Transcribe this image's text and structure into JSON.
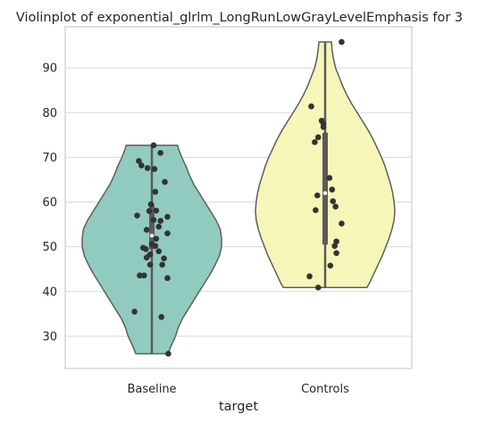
{
  "chart_data": {
    "type": "violin",
    "title": "Violinplot of exponential_glrlm_LongRunLowGrayLevelEmphasis for 3",
    "xlabel": "target",
    "ylabel": "",
    "categories": [
      "Baseline",
      "Controls"
    ],
    "ylim": [
      22.8,
      99.2
    ],
    "yticks": [
      30,
      40,
      50,
      60,
      70,
      80,
      90
    ],
    "grid": true,
    "colors": {
      "Baseline": "#91cbc0",
      "Controls": "#f6f6b9",
      "points": "#333333",
      "outline": "#5e5e5e"
    },
    "series": [
      {
        "category": "Baseline",
        "min": 26.1,
        "max": 72.7,
        "q1": 49.5,
        "q3": 59.5,
        "median": 52.5,
        "profile": [
          [
            26.1,
            0.23
          ],
          [
            28,
            0.28
          ],
          [
            30,
            0.34
          ],
          [
            32,
            0.38
          ],
          [
            34,
            0.44
          ],
          [
            36,
            0.52
          ],
          [
            38,
            0.6
          ],
          [
            40,
            0.68
          ],
          [
            42,
            0.76
          ],
          [
            44,
            0.84
          ],
          [
            46,
            0.91
          ],
          [
            48,
            0.97
          ],
          [
            50,
            1.0
          ],
          [
            52,
            1.0
          ],
          [
            54,
            0.98
          ],
          [
            56,
            0.92
          ],
          [
            58,
            0.84
          ],
          [
            60,
            0.76
          ],
          [
            62,
            0.68
          ],
          [
            64,
            0.6
          ],
          [
            66,
            0.54
          ],
          [
            68,
            0.49
          ],
          [
            70,
            0.43
          ],
          [
            72,
            0.38
          ],
          [
            72.7,
            0.37
          ]
        ],
        "points": [
          [
            0.02,
            72.7
          ],
          [
            0.1,
            71.0
          ],
          [
            -0.15,
            69.2
          ],
          [
            -0.12,
            68.2
          ],
          [
            -0.05,
            67.6
          ],
          [
            0.03,
            67.4
          ],
          [
            0.15,
            64.5
          ],
          [
            0.04,
            62.3
          ],
          [
            -0.01,
            59.5
          ],
          [
            -0.03,
            58.0
          ],
          [
            0.05,
            58.1
          ],
          [
            -0.17,
            57.0
          ],
          [
            0.18,
            56.7
          ],
          [
            0.02,
            56.0
          ],
          [
            0.1,
            55.8
          ],
          [
            0.08,
            54.5
          ],
          [
            -0.06,
            53.8
          ],
          [
            0.18,
            53.0
          ],
          [
            0.05,
            51.8
          ],
          [
            0.0,
            50.6
          ],
          [
            -0.1,
            49.8
          ],
          [
            0.04,
            50.2
          ],
          [
            -0.07,
            49.5
          ],
          [
            0.08,
            49.0
          ],
          [
            -0.02,
            48.3
          ],
          [
            -0.06,
            47.6
          ],
          [
            0.14,
            47.4
          ],
          [
            0.12,
            46.0
          ],
          [
            -0.02,
            46.0
          ],
          [
            -0.14,
            43.6
          ],
          [
            -0.09,
            43.6
          ],
          [
            0.18,
            43.0
          ],
          [
            -0.2,
            35.5
          ],
          [
            0.11,
            34.3
          ],
          [
            0.19,
            26.1
          ]
        ]
      },
      {
        "category": "Controls",
        "min": 40.9,
        "max": 95.8,
        "q1": 50.5,
        "q3": 75.5,
        "median": 62.0,
        "profile": [
          [
            40.9,
            0.6
          ],
          [
            42,
            0.64
          ],
          [
            44,
            0.7
          ],
          [
            46,
            0.76
          ],
          [
            48,
            0.82
          ],
          [
            50,
            0.87
          ],
          [
            52,
            0.92
          ],
          [
            54,
            0.96
          ],
          [
            56,
            0.99
          ],
          [
            58,
            1.0
          ],
          [
            60,
            0.99
          ],
          [
            62,
            0.97
          ],
          [
            64,
            0.94
          ],
          [
            66,
            0.9
          ],
          [
            68,
            0.86
          ],
          [
            70,
            0.81
          ],
          [
            72,
            0.75
          ],
          [
            74,
            0.69
          ],
          [
            76,
            0.62
          ],
          [
            78,
            0.54
          ],
          [
            80,
            0.46
          ],
          [
            82,
            0.38
          ],
          [
            84,
            0.31
          ],
          [
            86,
            0.25
          ],
          [
            88,
            0.2
          ],
          [
            90,
            0.15
          ],
          [
            92,
            0.12
          ],
          [
            94,
            0.1
          ],
          [
            95.8,
            0.09
          ]
        ],
        "points": [
          [
            0.19,
            95.8
          ],
          [
            -0.16,
            81.4
          ],
          [
            -0.04,
            78.2
          ],
          [
            -0.02,
            77.5
          ],
          [
            -0.02,
            76.8
          ],
          [
            -0.08,
            74.5
          ],
          [
            -0.12,
            73.4
          ],
          [
            0.05,
            65.4
          ],
          [
            0.08,
            62.8
          ],
          [
            -0.09,
            61.5
          ],
          [
            0.09,
            60.2
          ],
          [
            0.12,
            59.0
          ],
          [
            -0.11,
            58.2
          ],
          [
            0.19,
            55.2
          ],
          [
            0.13,
            51.2
          ],
          [
            0.11,
            50.2
          ],
          [
            0.13,
            48.6
          ],
          [
            0.06,
            45.8
          ],
          [
            -0.18,
            43.4
          ],
          [
            -0.08,
            40.9
          ]
        ]
      }
    ]
  }
}
